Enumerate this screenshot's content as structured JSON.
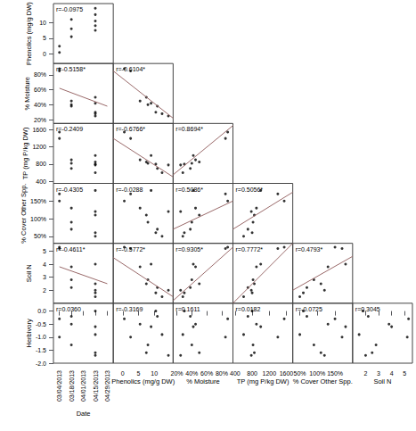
{
  "chart_data": {
    "type": "scatter_matrix",
    "color": "#000000",
    "grid": false,
    "variables": [
      {
        "name": "Date",
        "categories": [
          "03/04/2013",
          "03/18/2013",
          "04/01/2013",
          "04/15/2013",
          "04/29/2013"
        ],
        "values": [
          "03/04/2013",
          "03/04/2013",
          "03/18/2013",
          "03/18/2013",
          "03/18/2013",
          "04/15/2013",
          "04/15/2013",
          "04/15/2013",
          "04/15/2013",
          "04/15/2013"
        ]
      },
      {
        "name": "Phenolics (mg/g DW)",
        "lim": [
          -3,
          16
        ],
        "ticks": [
          0,
          5,
          10
        ],
        "values": [
          0.5,
          2.5,
          5.5,
          8,
          11,
          7.5,
          10.5,
          12.5,
          14.5,
          9
        ]
      },
      {
        "name": "% Moisture",
        "lim": [
          15,
          95
        ],
        "ticks": [
          {
            "value": 20,
            "label": "20%"
          },
          {
            "value": 40,
            "label": "40%"
          },
          {
            "value": 60,
            "label": "60%"
          },
          {
            "value": 80,
            "label": "80%"
          }
        ],
        "values": [
          88,
          85,
          45,
          40,
          38,
          50,
          30,
          28,
          25,
          42
        ]
      },
      {
        "name": "TP (mg P/kg DW)",
        "lim": [
          350,
          1750
        ],
        "ticks": [
          400,
          800,
          1200,
          1600
        ],
        "values": [
          1550,
          1400,
          900,
          820,
          700,
          850,
          800,
          600,
          780,
          1000
        ]
      },
      {
        "name": "% Cover Other Spp.",
        "lim": [
          30,
          200
        ],
        "ticks": [
          {
            "value": 50,
            "label": "50%"
          },
          {
            "value": 100,
            "label": "100%"
          },
          {
            "value": 150,
            "label": "150%"
          }
        ],
        "values": [
          150,
          170,
          130,
          90,
          70,
          110,
          60,
          50,
          120,
          180
        ]
      },
      {
        "name": "Soil N",
        "lim": [
          1,
          5.6
        ],
        "ticks": [
          2,
          3,
          4,
          5
        ],
        "values": [
          5.3,
          5.2,
          3.8,
          2.8,
          2.2,
          2.5,
          1.8,
          1.5,
          2.0,
          4.0
        ]
      },
      {
        "name": "Herbivory",
        "lim": [
          -2,
          0.3
        ],
        "ticks": [
          {
            "value": -2,
            "label": "-2.0"
          },
          {
            "value": -1.5,
            "label": "-1.5"
          },
          {
            "value": -1,
            "label": "-1.0"
          },
          {
            "value": -0.5,
            "label": "-0.5"
          },
          {
            "value": 0,
            "label": "0.0"
          }
        ],
        "values": [
          -0.3,
          -1.0,
          -0.5,
          -1.3,
          -0.2,
          -1.6,
          0.0,
          -0.9,
          -1.7,
          -0.6
        ]
      }
    ],
    "panels": [
      {
        "x": "Date",
        "y": "Phenolics (mg/g DW)",
        "label": "r=-0.0975"
      },
      {
        "x": "Date",
        "y": "% Moisture",
        "label": "r=-0.5158*",
        "fit": [
          [
            "03/04/2013",
            62
          ],
          [
            "04/29/2013",
            38
          ]
        ]
      },
      {
        "x": "Phenolics (mg/g DW)",
        "y": "% Moisture",
        "label": "r=-0.6104*",
        "fit": [
          [
            -3,
            85
          ],
          [
            16,
            22
          ]
        ]
      },
      {
        "x": "Date",
        "y": "TP (mg P/kg DW)",
        "label": "r=-0.2409"
      },
      {
        "x": "Phenolics (mg/g DW)",
        "y": "TP (mg P/kg DW)",
        "label": "r=-0.6766*",
        "fit": [
          [
            -3,
            1400
          ],
          [
            16,
            500
          ]
        ]
      },
      {
        "x": "% Moisture",
        "y": "TP (mg P/kg DW)",
        "label": "r=0.8694*",
        "fit": [
          [
            15,
            550
          ],
          [
            95,
            1700
          ]
        ]
      },
      {
        "x": "Date",
        "y": "% Cover Other Spp.",
        "label": "r=-0.4305"
      },
      {
        "x": "Phenolics (mg/g DW)",
        "y": "% Cover Other Spp.",
        "label": "r=-0.0288"
      },
      {
        "x": "% Moisture",
        "y": "% Cover Other Spp.",
        "label": "r=0.5086*",
        "fit": [
          [
            15,
            70
          ],
          [
            95,
            150
          ]
        ]
      },
      {
        "x": "TP (mg P/kg DW)",
        "y": "% Cover Other Spp.",
        "label": "r=0.5056*",
        "fit": [
          [
            350,
            70
          ],
          [
            1750,
            175
          ]
        ]
      },
      {
        "x": "Date",
        "y": "Soil N",
        "label": "r=-0.4611*",
        "fit": [
          [
            "03/04/2013",
            3.8
          ],
          [
            "04/29/2013",
            2.5
          ]
        ]
      },
      {
        "x": "Phenolics (mg/g DW)",
        "y": "Soil N",
        "label": "r=-0.5772*",
        "fit": [
          [
            -3,
            4.5
          ],
          [
            16,
            1.5
          ]
        ]
      },
      {
        "x": "% Moisture",
        "y": "Soil N",
        "label": "r=0.9305*",
        "fit": [
          [
            15,
            1.2
          ],
          [
            95,
            5.3
          ]
        ]
      },
      {
        "x": "TP (mg P/kg DW)",
        "y": "Soil N",
        "label": "r=0.7772*",
        "fit": [
          [
            350,
            1
          ],
          [
            1750,
            5.6
          ]
        ]
      },
      {
        "x": "% Cover Other Spp.",
        "y": "Soil N",
        "label": "r=0.4793*",
        "fit": [
          [
            30,
            2
          ],
          [
            200,
            4.6
          ]
        ]
      },
      {
        "x": "Date",
        "y": "Herbivory",
        "label": "r=0.0360"
      },
      {
        "x": "Phenolics (mg/g DW)",
        "y": "Herbivory",
        "label": "r=-0.3169"
      },
      {
        "x": "% Moisture",
        "y": "Herbivory",
        "label": "r=0.1611"
      },
      {
        "x": "TP (mg P/kg DW)",
        "y": "Herbivory",
        "label": "r=0.0182"
      },
      {
        "x": "% Cover Other Spp.",
        "y": "Herbivory",
        "label": "r=-0.0725"
      },
      {
        "x": "Soil N",
        "y": "Herbivory",
        "label": "r=0.3045"
      }
    ]
  }
}
